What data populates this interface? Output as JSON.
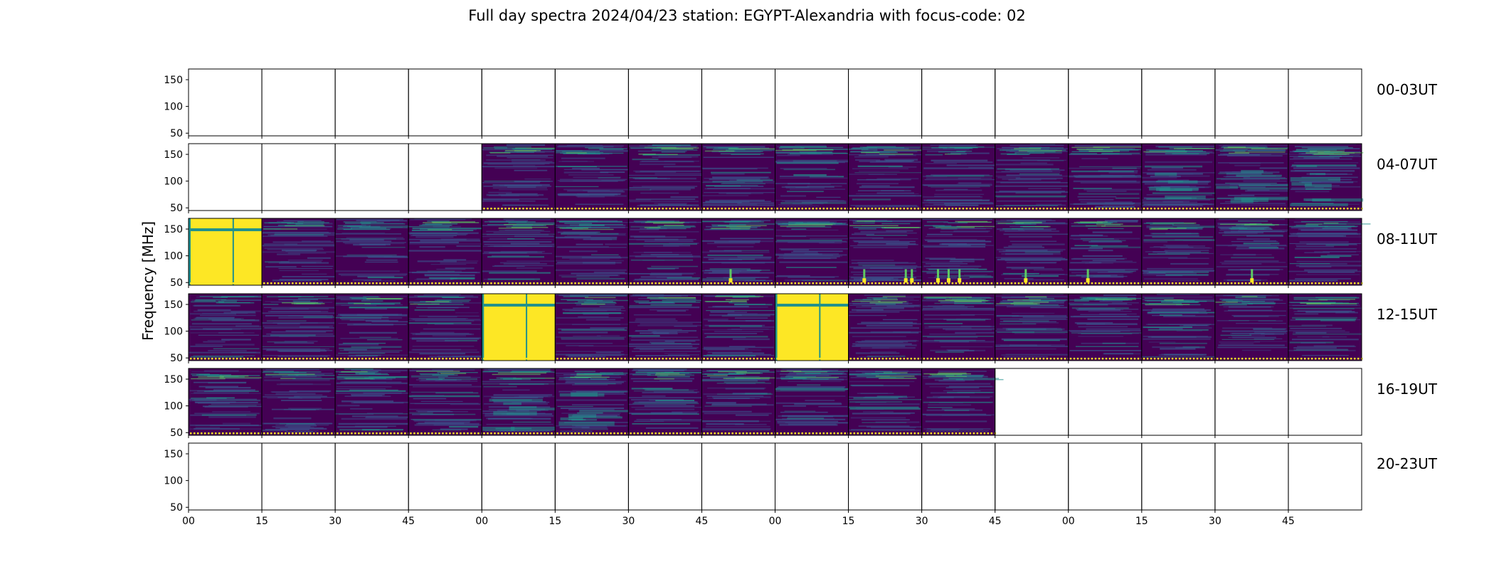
{
  "chart_data": {
    "type": "heatmap",
    "title": "Full day spectra 2024/04/23 station: EGYPT-Alexandria with focus-code: 02",
    "ylabel": "Frequency [MHz]",
    "xlabel": "",
    "y_ticks": [
      50,
      100,
      150
    ],
    "y_range": [
      45,
      170
    ],
    "x_tick_labels": [
      "00",
      "15",
      "30",
      "45",
      "00",
      "15",
      "30",
      "45",
      "00",
      "15",
      "30",
      "45",
      "00",
      "15",
      "30",
      "45"
    ],
    "panels_per_row": 16,
    "panel_minutes": 15,
    "colormap": [
      "#440154",
      "#3b528b",
      "#21918c",
      "#5ec962",
      "#fde725"
    ],
    "rows": [
      {
        "label": "00-03UT",
        "panels": [
          "empty",
          "empty",
          "empty",
          "empty",
          "empty",
          "empty",
          "empty",
          "empty",
          "empty",
          "empty",
          "empty",
          "empty",
          "empty",
          "empty",
          "empty",
          "empty"
        ]
      },
      {
        "label": "04-07UT",
        "panels": [
          "empty",
          "empty",
          "empty",
          "empty",
          "dark",
          "dark",
          "dark",
          "dark",
          "dark",
          "dark",
          "dark",
          "dark",
          "dark",
          "active",
          "active",
          "active"
        ]
      },
      {
        "label": "08-11UT",
        "panels": [
          "saturated",
          "dark",
          "dark",
          "dark",
          "dark",
          "dark",
          "dark",
          "burst",
          "dark",
          "burst",
          "burst",
          "burst",
          "burst",
          "dark",
          "burst",
          "dark"
        ]
      },
      {
        "label": "12-15UT",
        "panels": [
          "dark",
          "dark",
          "dark",
          "dark",
          "saturated",
          "dark",
          "dark",
          "dark",
          "saturated",
          "dark",
          "dark",
          "dark",
          "dark",
          "dark",
          "dark",
          "dark"
        ]
      },
      {
        "label": "16-19UT",
        "panels": [
          "dark",
          "dark",
          "dark",
          "dark",
          "active",
          "active",
          "dark",
          "dark",
          "dark",
          "dark",
          "dark",
          "empty",
          "empty",
          "empty",
          "empty",
          "empty"
        ]
      },
      {
        "label": "20-23UT",
        "panels": [
          "empty",
          "empty",
          "empty",
          "empty",
          "empty",
          "empty",
          "empty",
          "empty",
          "empty",
          "empty",
          "empty",
          "empty",
          "empty",
          "empty",
          "empty",
          "empty"
        ]
      }
    ]
  }
}
